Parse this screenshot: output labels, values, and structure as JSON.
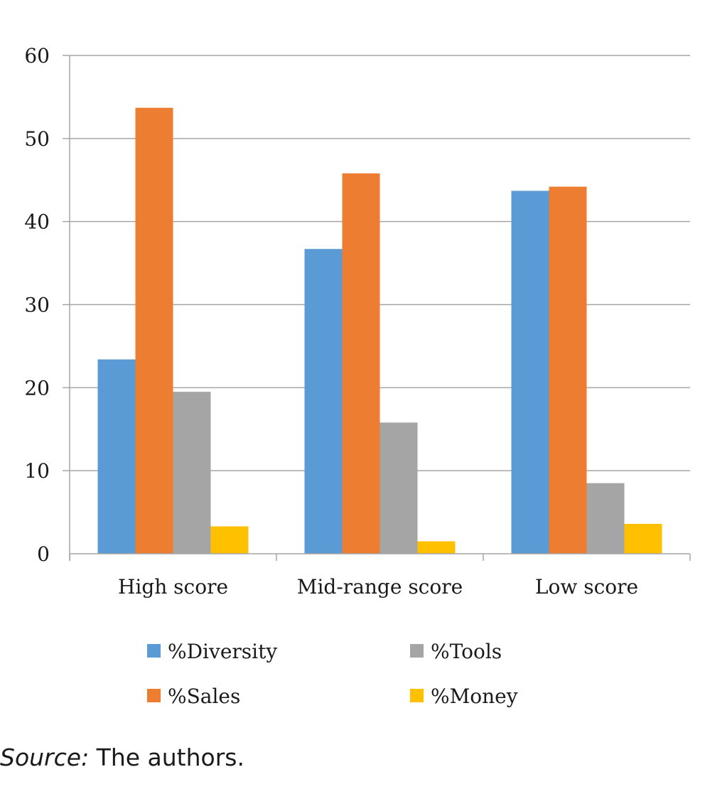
{
  "chart_data": {
    "type": "bar",
    "categories": [
      "High score",
      "Mid-range score",
      "Low score"
    ],
    "series": [
      {
        "name": "%Diversity",
        "color": "#5B9BD5",
        "values": [
          23.4,
          36.7,
          43.7
        ]
      },
      {
        "name": "%Sales",
        "color": "#ED7D31",
        "values": [
          53.7,
          45.8,
          44.2
        ]
      },
      {
        "name": "%Tools",
        "color": "#A5A5A5",
        "values": [
          19.5,
          15.8,
          8.5
        ]
      },
      {
        "name": "%Money",
        "color": "#FFC000",
        "values": [
          3.3,
          1.5,
          3.6
        ]
      }
    ],
    "ylim": [
      0,
      60
    ],
    "yticks": [
      "0",
      "10",
      "20",
      "30",
      "40",
      "50",
      "60"
    ],
    "grid": true,
    "legend_position": "bottom",
    "title": "",
    "xlabel": "",
    "ylabel": ""
  },
  "source": {
    "label": "Source:",
    "text": " The authors."
  }
}
